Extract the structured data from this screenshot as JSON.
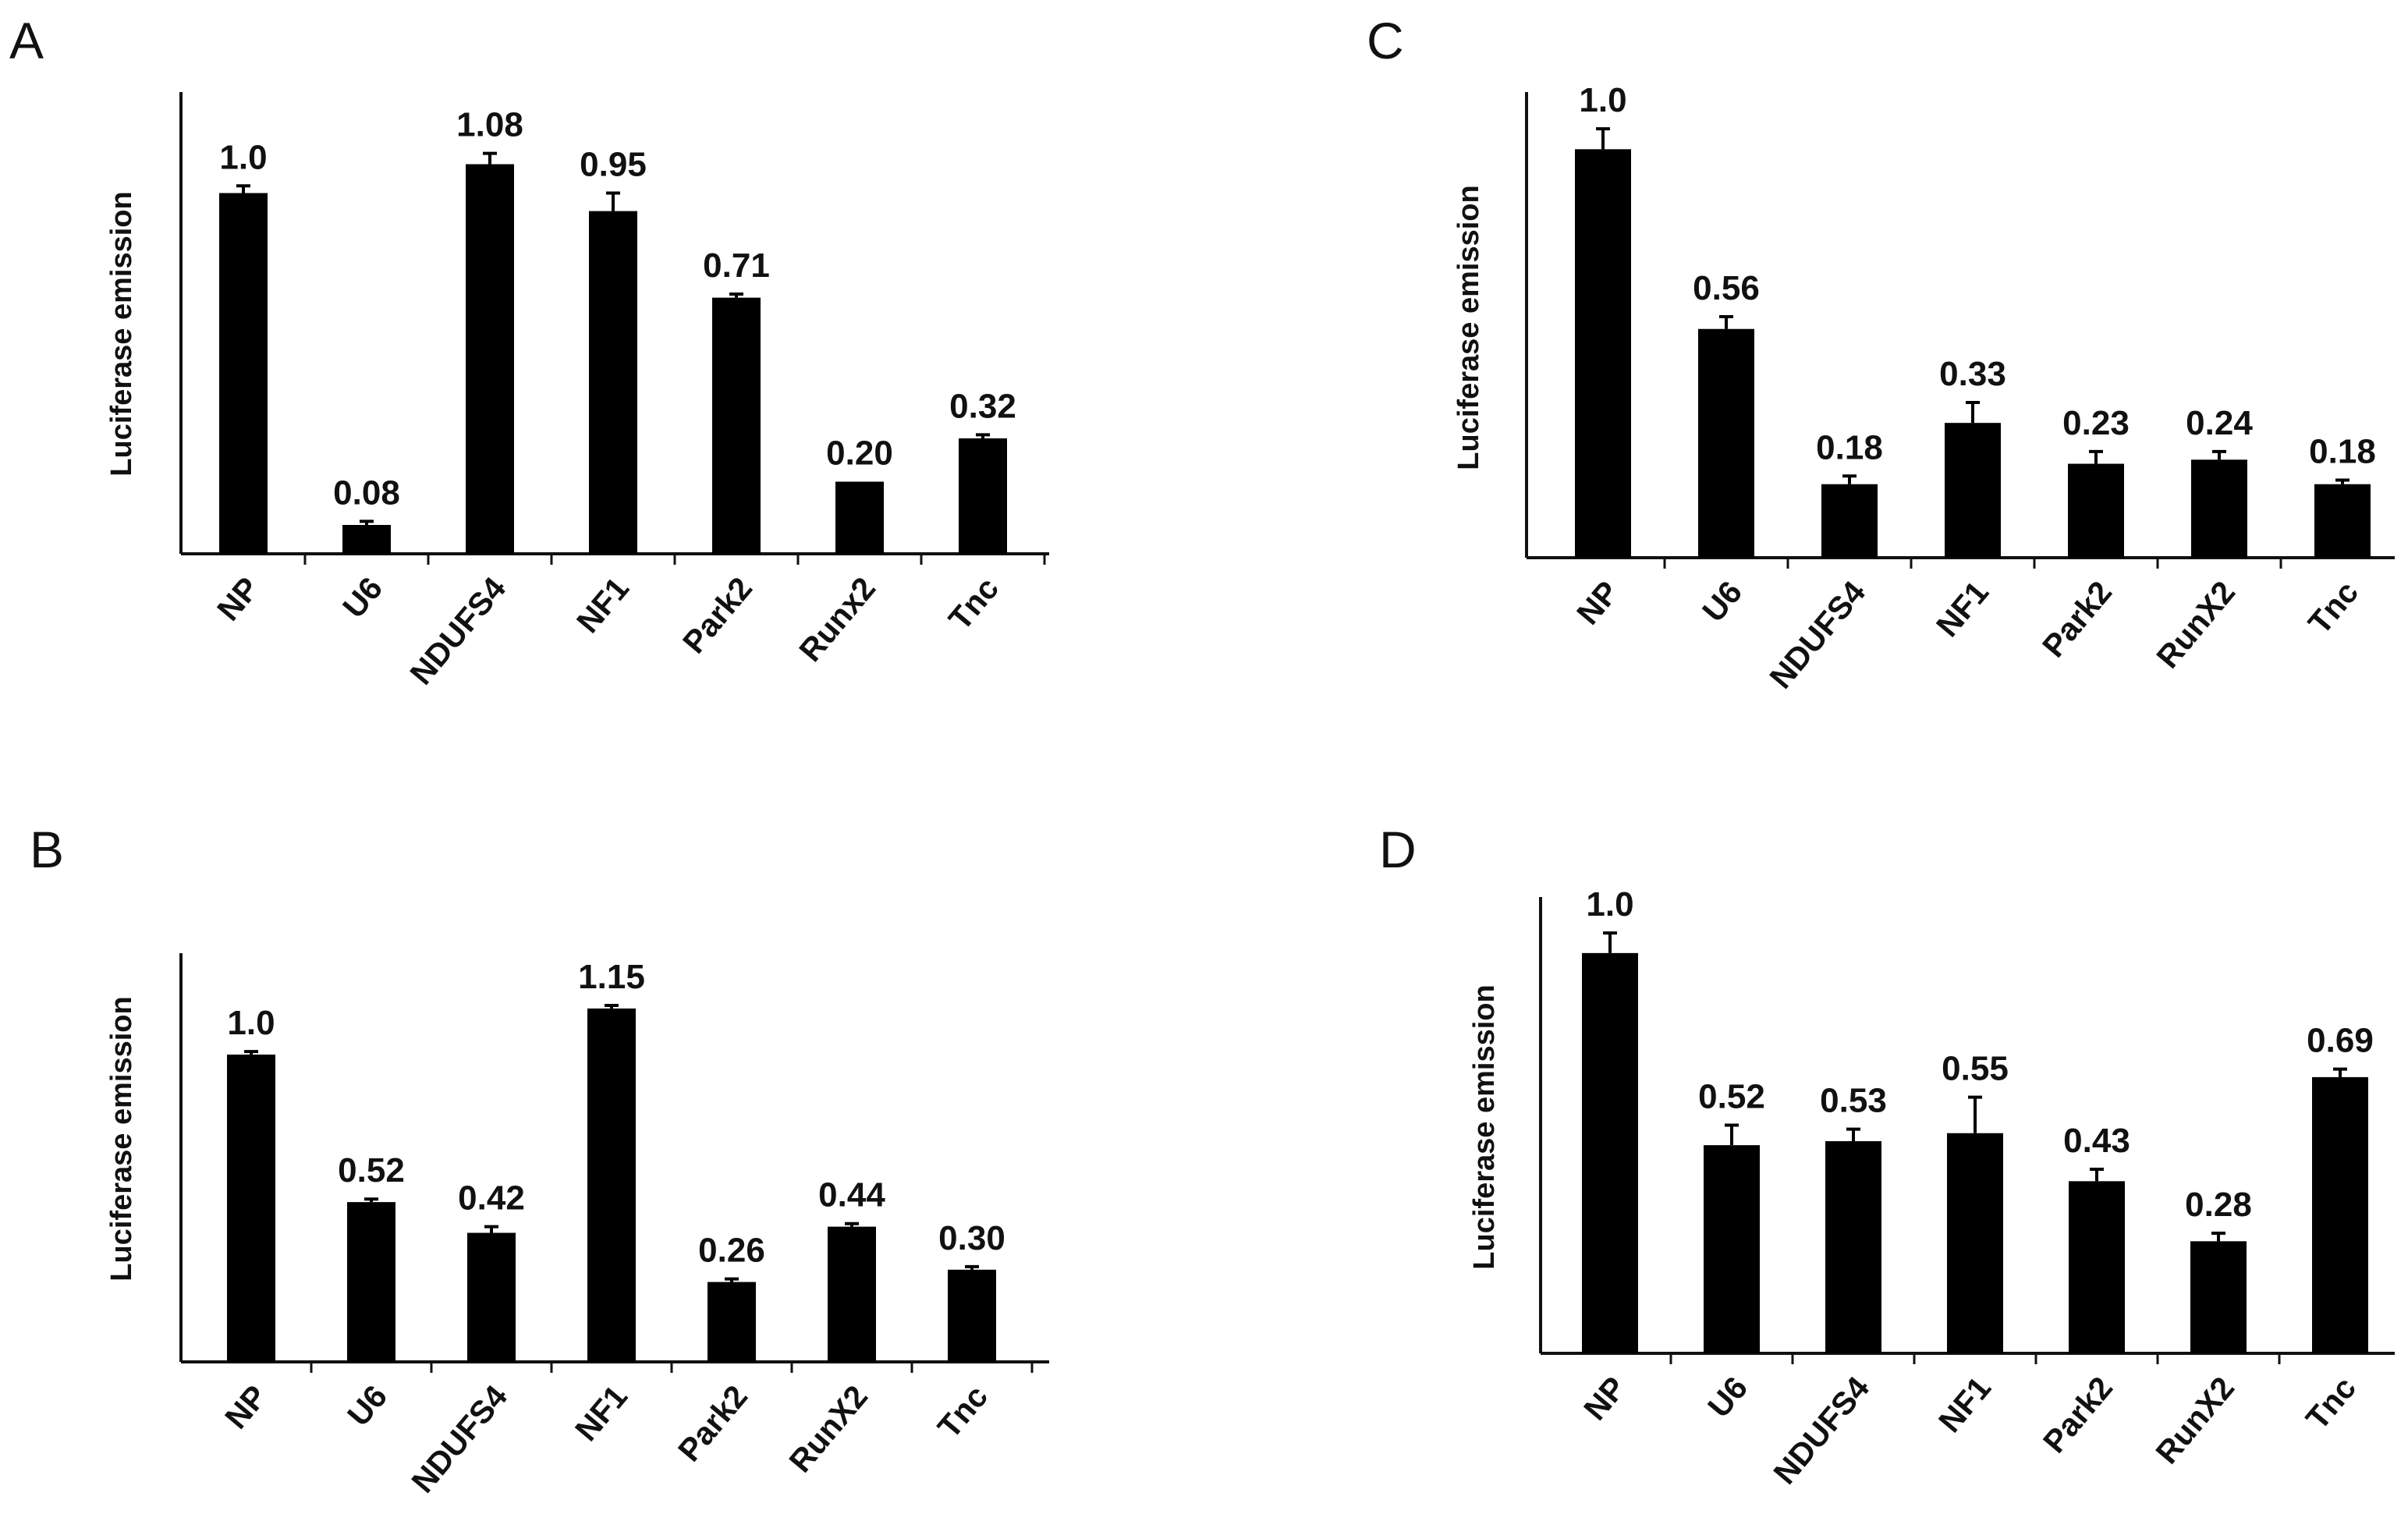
{
  "chart_data": [
    {
      "type": "bar",
      "panel": "A",
      "ylabel": "Luciferase emission",
      "xlabel": "",
      "categories": [
        "NP",
        "U6",
        "NDUFS4",
        "NF1",
        "Park2",
        "Runx2",
        "Tnc"
      ],
      "values": [
        1.0,
        0.08,
        1.08,
        0.95,
        0.71,
        0.2,
        0.32
      ],
      "value_labels": [
        "1.0",
        "0.08",
        "1.08",
        "0.95",
        "0.71",
        "0.20",
        "0.32"
      ],
      "errors": [
        0.02,
        0.01,
        0.03,
        0.05,
        0.01,
        0.0,
        0.01
      ],
      "ylim": [
        0,
        1.28
      ],
      "grid": false
    },
    {
      "type": "bar",
      "panel": "B",
      "ylabel": "Luciferase emission",
      "xlabel": "",
      "categories": [
        "NP",
        "U6",
        "NDUFS4",
        "NF1",
        "Park2",
        "RunX2",
        "Tnc"
      ],
      "values": [
        1.0,
        0.52,
        0.42,
        1.15,
        0.26,
        0.44,
        0.3
      ],
      "value_labels": [
        "1.0",
        "0.52",
        "0.42",
        "1.15",
        "0.26",
        "0.44",
        "0.30"
      ],
      "errors": [
        0.01,
        0.01,
        0.02,
        0.01,
        0.01,
        0.01,
        0.01
      ],
      "ylim": [
        0,
        1.33
      ],
      "grid": false
    },
    {
      "type": "bar",
      "panel": "C",
      "ylabel": "Luciferase emission",
      "xlabel": "",
      "categories": [
        "NP",
        "U6",
        "NDUFS4",
        "NF1",
        "Park2",
        "RunX2",
        "Tnc"
      ],
      "values": [
        1.0,
        0.56,
        0.18,
        0.33,
        0.23,
        0.24,
        0.18
      ],
      "value_labels": [
        "1.0",
        "0.56",
        "0.18",
        "0.33",
        "0.23",
        "0.24",
        "0.18"
      ],
      "errors": [
        0.05,
        0.03,
        0.02,
        0.05,
        0.03,
        0.02,
        0.01
      ],
      "ylim": [
        0,
        1.14
      ],
      "grid": false
    },
    {
      "type": "bar",
      "panel": "D",
      "ylabel": "Luciferase emission",
      "xlabel": "",
      "categories": [
        "NP",
        "U6",
        "NDUFS4",
        "NF1",
        "Park2",
        "RunX2",
        "Tnc"
      ],
      "values": [
        1.0,
        0.52,
        0.53,
        0.55,
        0.43,
        0.28,
        0.69
      ],
      "value_labels": [
        "1.0",
        "0.52",
        "0.53",
        "0.55",
        "0.43",
        "0.28",
        "0.69"
      ],
      "errors": [
        0.05,
        0.05,
        0.03,
        0.09,
        0.03,
        0.02,
        0.02
      ],
      "ylim": [
        0,
        1.14
      ],
      "grid": false
    }
  ]
}
